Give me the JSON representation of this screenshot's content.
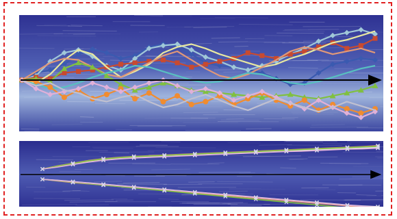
{
  "colors": {
    "frame_border": "#e02020",
    "water_dark": "#2a2c8e",
    "water_mid": "#4a55b0",
    "water_light": "#a9bedf",
    "axis_arrow": "#000000"
  },
  "top_panel": {
    "series": [
      {
        "color": "#3a5ab0",
        "marker": "diamond",
        "values": [
          0,
          10,
          14,
          22,
          36,
          43,
          38,
          30,
          34,
          46,
          50,
          47,
          36,
          24,
          20,
          18,
          14,
          10,
          2,
          -6,
          -4,
          10,
          22,
          26,
          30,
          28
        ]
      },
      {
        "color": "#a0c8d8",
        "marker": "diamond",
        "values": [
          0,
          6,
          26,
          38,
          42,
          33,
          20,
          14,
          30,
          44,
          48,
          50,
          42,
          32,
          26,
          18,
          14,
          20,
          26,
          36,
          44,
          54,
          62,
          66,
          70,
          64
        ]
      },
      {
        "color": "#c84a30",
        "marker": "square",
        "values": [
          0,
          4,
          2,
          10,
          12,
          14,
          18,
          22,
          24,
          26,
          28,
          24,
          18,
          22,
          26,
          30,
          38,
          34,
          30,
          36,
          40,
          46,
          52,
          44,
          48,
          58
        ]
      },
      {
        "color": "#e8e8a0",
        "marker": "none",
        "values": [
          0,
          -4,
          8,
          28,
          42,
          36,
          18,
          4,
          12,
          22,
          38,
          46,
          50,
          44,
          36,
          30,
          24,
          18,
          22,
          30,
          36,
          44,
          52,
          56,
          62,
          68
        ]
      },
      {
        "color": "#e09878",
        "marker": "none",
        "values": [
          0,
          12,
          24,
          30,
          28,
          18,
          8,
          4,
          14,
          24,
          34,
          40,
          28,
          16,
          6,
          2,
          8,
          18,
          28,
          40,
          46,
          42,
          36,
          40,
          44,
          38
        ]
      },
      {
        "color": "#80c040",
        "marker": "triangle",
        "values": [
          0,
          2,
          -2,
          16,
          24,
          18,
          6,
          -6,
          -14,
          -10,
          -4,
          -8,
          -14,
          -16,
          -18,
          -20,
          -22,
          -24,
          -22,
          -20,
          -24,
          -26,
          -22,
          -18,
          -14,
          -8
        ]
      },
      {
        "color": "#58c0c0",
        "marker": "none",
        "values": [
          0,
          -6,
          -12,
          -10,
          -4,
          4,
          10,
          14,
          20,
          18,
          12,
          6,
          0,
          -4,
          -2,
          4,
          10,
          8,
          2,
          -4,
          -6,
          -2,
          4,
          10,
          16,
          20
        ]
      },
      {
        "color": "#f08c30",
        "marker": "circle",
        "values": [
          0,
          -2,
          -10,
          -24,
          -14,
          -26,
          -20,
          -12,
          -26,
          -18,
          -30,
          -22,
          -34,
          -30,
          -22,
          -34,
          -26,
          -18,
          -28,
          -36,
          -28,
          -42,
          -34,
          -40,
          -46,
          -40
        ]
      },
      {
        "color": "#e0b0d8",
        "marker": "diamond",
        "values": [
          0,
          -12,
          -20,
          -16,
          -12,
          -4,
          -10,
          -16,
          -10,
          -4,
          0,
          -8,
          -16,
          -12,
          -18,
          -28,
          -22,
          -16,
          -24,
          -32,
          -40,
          -28,
          -38,
          -46,
          -52,
          -44
        ]
      },
      {
        "color": "#c0c0d0",
        "marker": "none",
        "values": [
          0,
          -8,
          -4,
          -14,
          -18,
          -26,
          -30,
          -24,
          -20,
          -30,
          -38,
          -34,
          -26,
          -20,
          -28,
          -36,
          -42,
          -34,
          -26,
          -32,
          -38,
          -44,
          -38,
          -30,
          -36,
          -42
        ]
      }
    ]
  },
  "bottom_panel": {
    "upper_bundle": [
      {
        "color": "#a0c8d8",
        "values": [
          0,
          4,
          8,
          12,
          15,
          17,
          18,
          19,
          20,
          21,
          22,
          23,
          24,
          25,
          26,
          27,
          28,
          29,
          30,
          31,
          32,
          33,
          34
        ]
      },
      {
        "color": "#e09878",
        "values": [
          0,
          5,
          9,
          13,
          16,
          18,
          19.5,
          20.5,
          21.5,
          22.5,
          23.5,
          24.5,
          25.5,
          26.5,
          27.5,
          28.5,
          29.5,
          30.5,
          31.5,
          32.5,
          33.5,
          34.5,
          36
        ]
      },
      {
        "color": "#e8e8e8",
        "values": [
          0,
          3.5,
          7.5,
          11,
          14,
          16,
          17.5,
          18.5,
          19.5,
          20.5,
          21.5,
          22.5,
          23.5,
          24.5,
          25.5,
          26.5,
          27.5,
          28.5,
          29.5,
          30.5,
          31.5,
          32,
          33
        ]
      },
      {
        "color": "#80c040",
        "values": [
          0,
          4.5,
          8.5,
          12.5,
          15.5,
          17.5,
          19,
          20,
          21,
          22,
          23,
          24,
          25,
          26,
          27,
          28,
          29,
          30,
          31,
          32,
          33,
          34,
          35
        ]
      },
      {
        "color": "#e0b0d8",
        "values": [
          0,
          3,
          7,
          10.5,
          13.5,
          15.5,
          17,
          18,
          19,
          20,
          21,
          22,
          23,
          24,
          25,
          26,
          27,
          27.5,
          28.5,
          29.5,
          30.5,
          31,
          32
        ]
      }
    ],
    "lower_bundle": [
      {
        "color": "#a0c8d8",
        "values": [
          0,
          -2,
          -4,
          -6,
          -8,
          -10,
          -12,
          -14,
          -16,
          -18,
          -20,
          -22,
          -24,
          -26,
          -28,
          -30,
          -32,
          -34,
          -36,
          -38,
          -40,
          -42,
          -44
        ]
      },
      {
        "color": "#e09878",
        "values": [
          0,
          -2.5,
          -5,
          -7,
          -9,
          -11,
          -13,
          -15,
          -17,
          -19,
          -21,
          -23,
          -25,
          -27,
          -29,
          -31,
          -33,
          -35,
          -37,
          -39,
          -41,
          -43,
          -46
        ]
      },
      {
        "color": "#e8e8e8",
        "values": [
          0,
          -1.5,
          -3.5,
          -5.5,
          -7.5,
          -9.5,
          -11.5,
          -13.5,
          -15.5,
          -17.5,
          -19.5,
          -21.5,
          -23.5,
          -25.5,
          -27.5,
          -29.5,
          -31.5,
          -33.5,
          -35.5,
          -37.5,
          -39.5,
          -41,
          -42
        ]
      },
      {
        "color": "#80c040",
        "values": [
          0,
          -2.2,
          -4.4,
          -6.6,
          -8.8,
          -11,
          -13.2,
          -15.4,
          -17.6,
          -19.8,
          -22,
          -24.2,
          -26.4,
          -28.6,
          -30.8,
          -33,
          -35.2,
          -37.4,
          -39.6,
          -41.8,
          -44,
          -46,
          -48
        ]
      },
      {
        "color": "#e0b0d8",
        "values": [
          0,
          -1.8,
          -3.8,
          -5.8,
          -7.8,
          -9.8,
          -11.8,
          -13.8,
          -15.8,
          -17.8,
          -19.8,
          -21.8,
          -23.8,
          -25.8,
          -27.8,
          -29.8,
          -31.8,
          -33.8,
          -35.8,
          -37.8,
          -39.8,
          -41.5,
          -43
        ]
      }
    ]
  }
}
